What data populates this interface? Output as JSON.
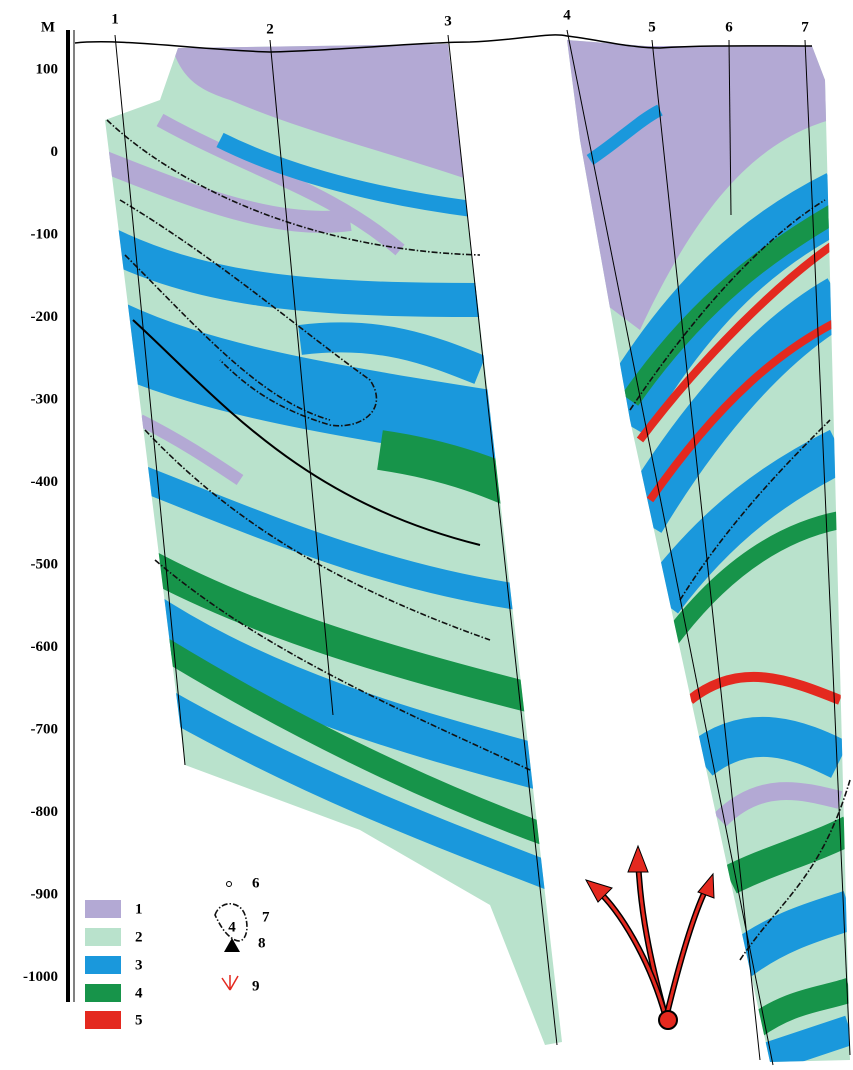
{
  "axis": {
    "unit": "M",
    "labels": [
      "100",
      "0",
      "-100",
      "-200",
      "-300",
      "-400",
      "-500",
      "-600",
      "-700",
      "-800",
      "-900",
      "-1000"
    ]
  },
  "wells": [
    "1",
    "2",
    "3",
    "4",
    "5",
    "6",
    "7"
  ],
  "legend": {
    "items": [
      "1",
      "2",
      "3",
      "4",
      "5",
      "6",
      "7",
      "8",
      "9"
    ],
    "marker_label": "4"
  }
}
